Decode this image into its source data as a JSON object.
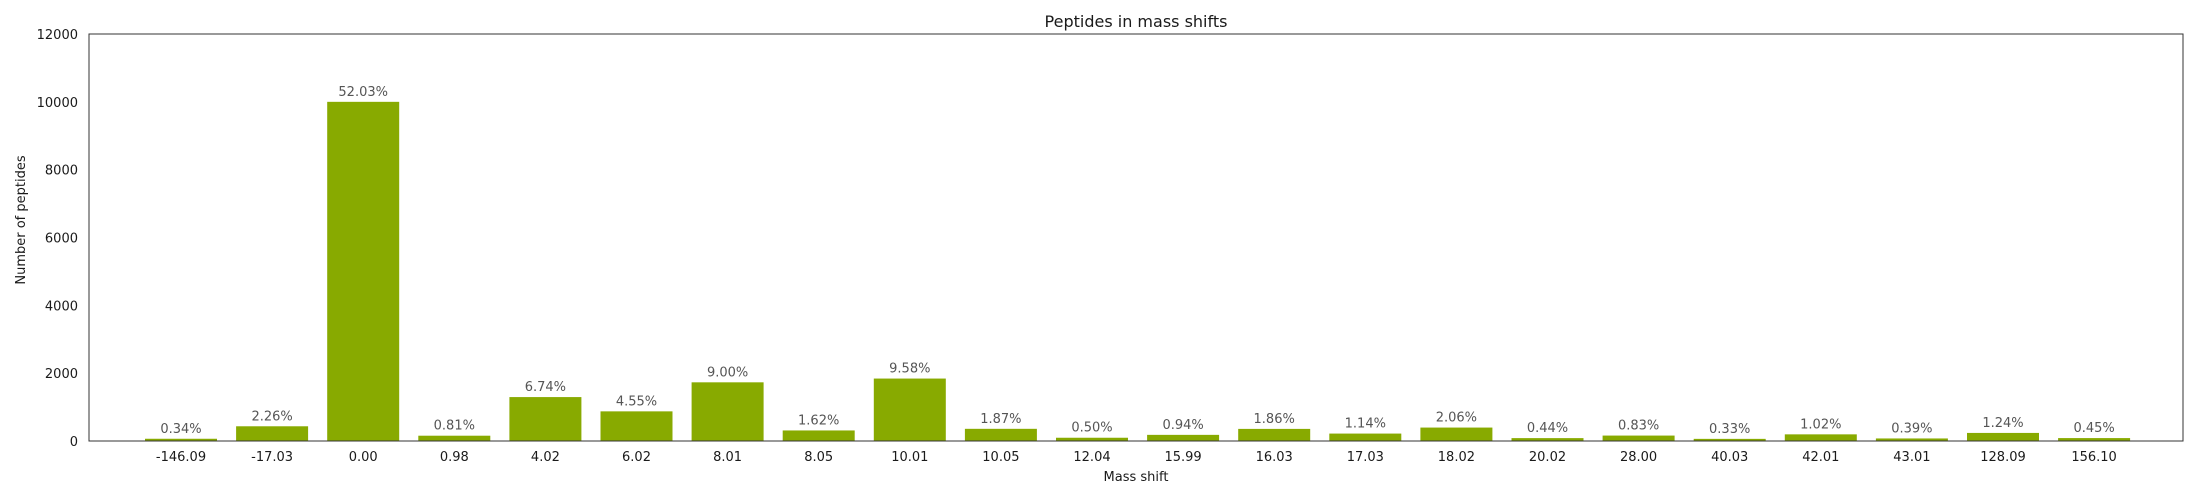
{
  "chart_data": {
    "type": "bar",
    "title": "Peptides in mass shifts",
    "xlabel": "Mass shift",
    "ylabel": "Number of peptides",
    "ylim": [
      0,
      12000
    ],
    "yticks": [
      0,
      2000,
      4000,
      6000,
      8000,
      10000,
      12000
    ],
    "grid": false,
    "bar_color": "#88aa00",
    "categories": [
      "-146.09",
      "-17.03",
      "0.00",
      "0.98",
      "4.02",
      "6.02",
      "8.01",
      "8.05",
      "10.01",
      "10.05",
      "12.04",
      "15.99",
      "16.03",
      "17.03",
      "18.02",
      "20.02",
      "28.00",
      "40.03",
      "42.01",
      "43.01",
      "128.09",
      "156.10"
    ],
    "values": [
      66,
      434,
      10000,
      156,
      1295,
      874,
      1730,
      311,
      1841,
      359,
      96,
      181,
      357,
      219,
      396,
      85,
      160,
      63,
      196,
      75,
      238,
      86
    ],
    "labels": [
      "0.34%",
      "2.26%",
      "52.03%",
      "0.81%",
      "6.74%",
      "4.55%",
      "9.00%",
      "1.62%",
      "9.58%",
      "1.87%",
      "0.50%",
      "0.94%",
      "1.86%",
      "1.14%",
      "2.06%",
      "0.44%",
      "0.83%",
      "0.33%",
      "1.02%",
      "0.39%",
      "1.24%",
      "0.45%"
    ]
  }
}
